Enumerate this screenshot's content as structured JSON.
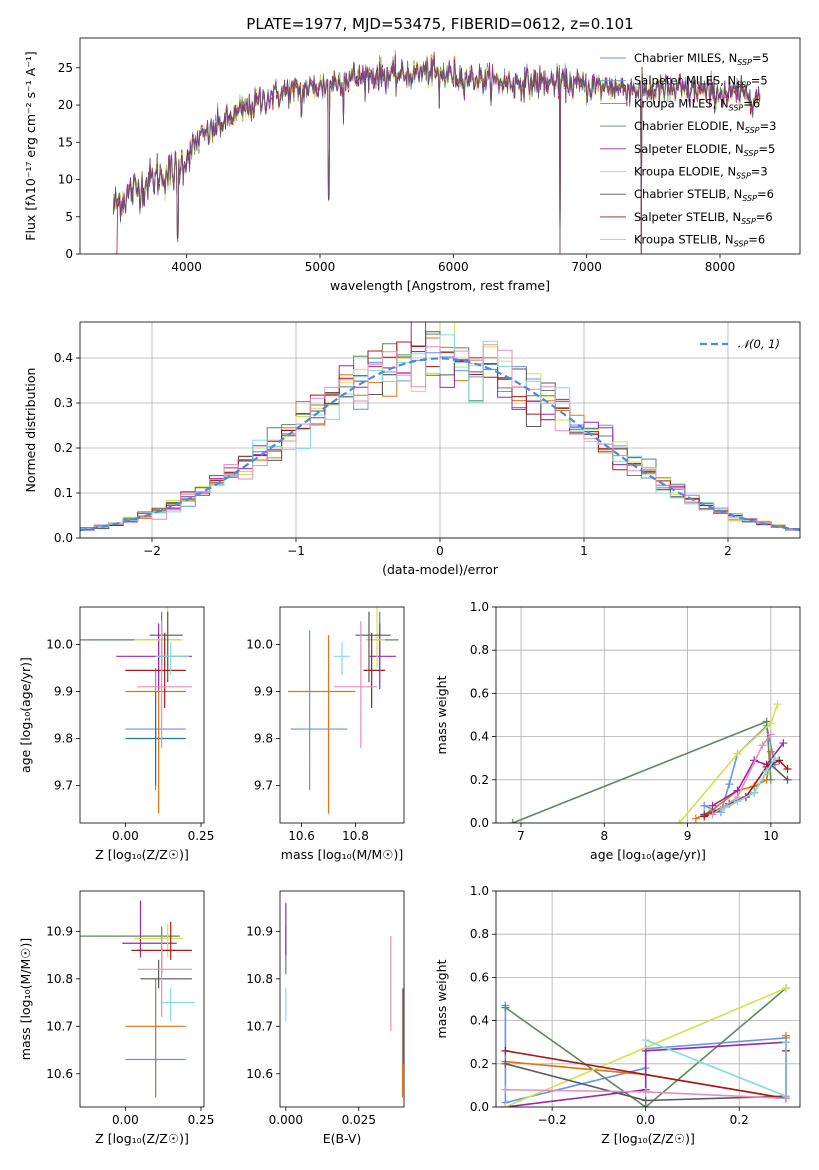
{
  "title": "PLATE=1977, MJD=53475, FIBERID=0612, z=0.101",
  "colors": {
    "Chabrier MILES": "#6495ed",
    "Salpeter MILES": "#1f77b4",
    "Kroupa MILES": "#e5730e",
    "Chabrier ELODIE": "#5e8a5e",
    "Salpeter ELODIE": "#9c27b0",
    "Kroupa ELODIE": "#d2e24e",
    "Chabrier STELIB": "#595959",
    "Salpeter STELIB": "#a8181c",
    "Kroupa STELIB": "#80dede",
    "extra_pink": "#e58fbc",
    "normal_curve": "#4a8be0"
  },
  "chart_data": [
    {
      "id": "spectrum",
      "type": "line",
      "title": "PLATE=1977, MJD=53475, FIBERID=0612, z=0.101",
      "xlabel": "wavelength [Angstrom, rest frame]",
      "ylabel": "Flux [fλ10⁻¹⁷ erg cm⁻² s⁻¹ A⁻¹]",
      "xlim": [
        3200,
        8600
      ],
      "ylim": [
        0,
        29
      ],
      "xticks": [
        "4000",
        "5000",
        "6000",
        "7000",
        "8000"
      ],
      "yticks": [
        "0",
        "5",
        "10",
        "15",
        "20",
        "25"
      ],
      "legend_position": "upper-right",
      "legend": [
        {
          "label": "Chabrier MILES, N",
          "sub": "SSP",
          "suffix": "=5",
          "color_key": "Chabrier MILES"
        },
        {
          "label": "Salpeter MILES, N",
          "sub": "SSP",
          "suffix": "=5",
          "color_key": "Chabrier MILES"
        },
        {
          "label": "Kroupa MILES, N",
          "sub": "SSP",
          "suffix": "=6",
          "color_key": "Kroupa MILES"
        },
        {
          "label": "Chabrier ELODIE, N",
          "sub": "SSP",
          "suffix": "=3",
          "color_key": "Chabrier ELODIE"
        },
        {
          "label": "Salpeter ELODIE, N",
          "sub": "SSP",
          "suffix": "=5",
          "color_key": "Salpeter ELODIE"
        },
        {
          "label": "Kroupa ELODIE, N",
          "sub": "SSP",
          "suffix": "=3",
          "color_key": "Kroupa ELODIE"
        },
        {
          "label": "Chabrier STELIB, N",
          "sub": "SSP",
          "suffix": "=6",
          "color_key": "Chabrier STELIB"
        },
        {
          "label": "Salpeter STELIB, N",
          "sub": "SSP",
          "suffix": "=6",
          "color_key": "Salpeter STELIB"
        },
        {
          "label": "Kroupa STELIB, N",
          "sub": "SSP",
          "suffix": "=6",
          "color_key": "Kroupa STELIB"
        }
      ],
      "continuum_nodes": {
        "x": [
          3450,
          3600,
          3700,
          3800,
          3900,
          4000,
          4100,
          4300,
          4400,
          4600,
          4800,
          5000,
          5200,
          5400,
          5600,
          5800,
          6000,
          6200,
          6400,
          6600,
          6800,
          7000,
          7200,
          7400,
          7600,
          7800,
          8000,
          8200,
          8300
        ],
        "y": [
          6.5,
          8.5,
          9.5,
          10.5,
          11,
          13,
          15.5,
          18,
          19,
          21,
          22,
          22.5,
          23.5,
          24,
          24,
          24.5,
          24,
          23.5,
          23,
          23,
          23,
          22.5,
          22.5,
          22,
          22,
          22,
          21.5,
          21.5,
          21
        ]
      },
      "features": [
        {
          "x": 3934,
          "y": 2
        },
        {
          "x": 4861,
          "y": 19
        },
        {
          "x": 5065,
          "y": 7.5
        },
        {
          "x": 5176,
          "y": 18
        },
        {
          "x": 5893,
          "y": 20
        },
        {
          "x": 6800,
          "y": 0
        },
        {
          "x": 7410,
          "y": 0
        }
      ]
    },
    {
      "id": "residuals",
      "type": "step-histogram",
      "xlabel": "(data-model)/error",
      "ylabel": "Normed distribution",
      "xlim": [
        -2.5,
        2.5
      ],
      "ylim": [
        0,
        0.48
      ],
      "xticks": [
        "−2",
        "−1",
        "0",
        "1",
        "2"
      ],
      "yticks": [
        "0.0",
        "0.1",
        "0.2",
        "0.3",
        "0.4"
      ],
      "legend": "𝒩(0, 1)",
      "legend_position": "upper-right",
      "bin_width": 0.1,
      "bin_start": -2.5,
      "reference": {
        "name": "𝒩(0, 1)",
        "mean": 0,
        "sigma": 1
      }
    },
    {
      "id": "age-vs-Z",
      "type": "errorbar",
      "xlabel": "Z [log₁₀(Z/Z☉)]",
      "ylabel": "age  [log₁₀(age/yr)]",
      "xlim": [
        -0.15,
        0.26
      ],
      "ylim": [
        9.62,
        10.08
      ],
      "xticks": [
        "0.00",
        "0.25"
      ],
      "yticks": [
        "9.7",
        "9.8",
        "9.9",
        "10.0"
      ],
      "points": [
        {
          "key": "Chabrier MILES",
          "x": 0.1,
          "xerr": [
            0.1,
            0.1
          ],
          "y": 9.82,
          "yerr": [
            0.13,
            0.13
          ]
        },
        {
          "key": "Salpeter MILES",
          "x": 0.1,
          "xerr": [
            0.1,
            0.1
          ],
          "y": 9.8,
          "yerr": [
            0.1,
            0.1
          ]
        },
        {
          "key": "Kroupa MILES",
          "x": 0.11,
          "xerr": [
            0.11,
            0.09
          ],
          "y": 9.9,
          "yerr": [
            0.26,
            0.12
          ]
        },
        {
          "key": "Chabrier ELODIE",
          "x": 0.12,
          "xerr": [
            0.27,
            0.06
          ],
          "y": 10.01,
          "yerr": [
            0.06,
            0.06
          ]
        },
        {
          "key": "Salpeter ELODIE",
          "x": 0.11,
          "xerr": [
            0.14,
            0.11
          ],
          "y": 9.975,
          "yerr": [
            0.07,
            0.07
          ]
        },
        {
          "key": "Kroupa ELODIE",
          "x": 0.14,
          "xerr": [
            0.11,
            0.05
          ],
          "y": 10.01,
          "yerr": [
            0.06,
            0.07
          ]
        },
        {
          "key": "Chabrier STELIB",
          "x": 0.14,
          "xerr": [
            0.06,
            0.05
          ],
          "y": 10.02,
          "yerr": [
            0.1,
            0.05
          ]
        },
        {
          "key": "Salpeter STELIB",
          "x": 0.13,
          "xerr": [
            0.13,
            0.07
          ],
          "y": 9.945,
          "yerr": [
            0.08,
            0.08
          ]
        },
        {
          "key": "Kroupa STELIB",
          "x": 0.15,
          "xerr": [
            0.05,
            0.06
          ],
          "y": 9.975,
          "yerr": [
            0.04,
            0.03
          ]
        },
        {
          "key": "extra_pink",
          "x": 0.12,
          "xerr": [
            0.08,
            0.1
          ],
          "y": 9.91,
          "yerr": [
            0.13,
            0.14
          ]
        }
      ]
    },
    {
      "id": "age-vs-mass",
      "type": "errorbar",
      "xlabel": "mass [log₁₀(M/M☉)]",
      "ylabel": "",
      "xlim": [
        10.52,
        10.98
      ],
      "ylim": [
        9.62,
        10.08
      ],
      "xticks": [
        "10.6",
        "10.8"
      ],
      "yticks": [
        "9.7",
        "9.8",
        "9.9",
        "10.0"
      ],
      "points": [
        {
          "key": "Chabrier MILES",
          "x": 10.63,
          "xerr": [
            0.07,
            0.14
          ],
          "y": 9.82,
          "yerr": [
            0.13,
            0.21
          ]
        },
        {
          "key": "Kroupa MILES",
          "x": 10.7,
          "xerr": [
            0.15,
            0.1
          ],
          "y": 9.9,
          "yerr": [
            0.26,
            0.12
          ]
        },
        {
          "key": "Chabrier ELODIE",
          "x": 10.89,
          "xerr": [
            0.05,
            0.07
          ],
          "y": 10.01,
          "yerr": [
            0.06,
            0.06
          ]
        },
        {
          "key": "Salpeter ELODIE",
          "x": 10.89,
          "xerr": [
            0.04,
            0.06
          ],
          "y": 9.975,
          "yerr": [
            0.07,
            0.07
          ]
        },
        {
          "key": "Kroupa ELODIE",
          "x": 10.88,
          "xerr": [
            0.04,
            0.03
          ],
          "y": 10.01,
          "yerr": [
            0.06,
            0.07
          ]
        },
        {
          "key": "Chabrier STELIB",
          "x": 10.85,
          "xerr": [
            0.05,
            0.08
          ],
          "y": 10.02,
          "yerr": [
            0.1,
            0.05
          ]
        },
        {
          "key": "Salpeter STELIB",
          "x": 10.86,
          "xerr": [
            0.03,
            0.05
          ],
          "y": 9.945,
          "yerr": [
            0.08,
            0.08
          ]
        },
        {
          "key": "Kroupa STELIB",
          "x": 10.75,
          "xerr": [
            0.03,
            0.03
          ],
          "y": 9.975,
          "yerr": [
            0.04,
            0.03
          ]
        },
        {
          "key": "extra_pink",
          "x": 10.82,
          "xerr": [
            0.1,
            0.06
          ],
          "y": 9.91,
          "yerr": [
            0.13,
            0.14
          ]
        }
      ]
    },
    {
      "id": "weight-vs-age",
      "type": "line",
      "xlabel": "age  [log₁₀(age/yr)]",
      "ylabel": "mass weight",
      "xlim": [
        6.7,
        10.35
      ],
      "ylim": [
        0,
        1
      ],
      "xticks": [
        "7",
        "8",
        "9",
        "10"
      ],
      "yticks": [
        "0.0",
        "0.2",
        "0.4",
        "0.6",
        "0.8",
        "1.0"
      ],
      "series": [
        {
          "key": "Chabrier MILES",
          "x": [
            9.2,
            9.4,
            9.5,
            9.6,
            9.95,
            10.05
          ],
          "y": [
            0.08,
            0.05,
            0.18,
            0.32,
            0.45,
            0.27
          ]
        },
        {
          "key": "Kroupa MILES",
          "x": [
            9.1,
            9.3,
            9.6,
            9.8,
            9.95,
            10.0
          ],
          "y": [
            0.02,
            0.06,
            0.15,
            0.17,
            0.2,
            0.33
          ]
        },
        {
          "key": "Chabrier ELODIE",
          "x": [
            6.9,
            9.95,
            10.0
          ],
          "y": [
            0.0,
            0.47,
            0.2
          ]
        },
        {
          "key": "Salpeter ELODIE",
          "x": [
            9.3,
            9.6,
            9.8,
            9.95,
            10.15
          ],
          "y": [
            0.08,
            0.15,
            0.29,
            0.27,
            0.37
          ]
        },
        {
          "key": "Kroupa ELODIE",
          "x": [
            8.9,
            9.6,
            10.0,
            10.08
          ],
          "y": [
            0.0,
            0.32,
            0.46,
            0.55
          ]
        },
        {
          "key": "Chabrier STELIB",
          "x": [
            9.2,
            9.3,
            9.5,
            9.8,
            10.0,
            10.2
          ],
          "y": [
            0.04,
            0.05,
            0.09,
            0.14,
            0.27,
            0.2
          ]
        },
        {
          "key": "Salpeter STELIB",
          "x": [
            9.2,
            9.4,
            9.7,
            9.95,
            10.1,
            10.2
          ],
          "y": [
            0.03,
            0.06,
            0.12,
            0.26,
            0.29,
            0.25
          ]
        },
        {
          "key": "Kroupa STELIB",
          "x": [
            9.4,
            9.6,
            9.8,
            9.95,
            10.05
          ],
          "y": [
            0.06,
            0.1,
            0.14,
            0.24,
            0.3
          ]
        },
        {
          "key": "extra_pink",
          "x": [
            9.3,
            9.6,
            9.9,
            10.0
          ],
          "y": [
            0.04,
            0.12,
            0.36,
            0.41
          ]
        }
      ]
    },
    {
      "id": "mass-vs-Z",
      "type": "errorbar",
      "xlabel": "Z [log₁₀(Z/Z☉)]",
      "ylabel": "mass [log₁₀(M/M☉)]",
      "xlim": [
        -0.15,
        0.26
      ],
      "ylim": [
        10.53,
        10.985
      ],
      "xticks": [
        "0.00",
        "0.25"
      ],
      "yticks": [
        "10.6",
        "10.7",
        "10.8",
        "10.9"
      ],
      "points": [
        {
          "key": "Chabrier MILES",
          "x": 0.1,
          "xerr": [
            0.1,
            0.1
          ],
          "y": 10.63,
          "yerr": [
            0.08,
            0.15
          ]
        },
        {
          "key": "Kroupa MILES",
          "x": 0.1,
          "xerr": [
            0.1,
            0.1
          ],
          "y": 10.7,
          "yerr": [
            0.15,
            0.1
          ]
        },
        {
          "key": "Chabrier ELODIE",
          "x": 0.12,
          "xerr": [
            0.27,
            0.06
          ],
          "y": 10.89,
          "yerr": [
            0.08,
            0.02
          ]
        },
        {
          "key": "Salpeter ELODIE",
          "x": 0.05,
          "xerr": [
            0.06,
            0.12
          ],
          "y": 10.875,
          "yerr": [
            0.03,
            0.09
          ]
        },
        {
          "key": "Kroupa ELODIE",
          "x": 0.14,
          "xerr": [
            0.11,
            0.05
          ],
          "y": 10.885,
          "yerr": [
            0.04,
            0.03
          ]
        },
        {
          "key": "Chabrier STELIB",
          "x": 0.11,
          "xerr": [
            0.06,
            0.11
          ],
          "y": 10.8,
          "yerr": [
            0.02,
            0.04
          ]
        },
        {
          "key": "Salpeter STELIB",
          "x": 0.15,
          "xerr": [
            0.13,
            0.07
          ],
          "y": 10.86,
          "yerr": [
            0.02,
            0.06
          ]
        },
        {
          "key": "Kroupa STELIB",
          "x": 0.15,
          "xerr": [
            0.03,
            0.08
          ],
          "y": 10.75,
          "yerr": [
            0.04,
            0.03
          ]
        },
        {
          "key": "extra_pink",
          "x": 0.12,
          "xerr": [
            0.08,
            0.1
          ],
          "y": 10.82,
          "yerr": [
            0.1,
            0.07
          ]
        }
      ]
    },
    {
      "id": "mass-vs-EBV",
      "type": "errorbar",
      "xlabel": "E(B-V)",
      "ylabel": "",
      "xlim": [
        -0.002,
        0.0405
      ],
      "ylim": [
        10.53,
        10.985
      ],
      "xticks": [
        "0.000",
        "0.025"
      ],
      "yticks": [
        "10.6",
        "10.7",
        "10.8",
        "10.9"
      ],
      "points": [
        {
          "key": "Kroupa MILES",
          "x": 0.04,
          "y": 10.7,
          "yerr": [
            0.15,
            0.08
          ]
        },
        {
          "key": "Chabrier MILES",
          "x": 0.0402,
          "y": 10.7,
          "yerr": [
            0.08,
            0.08
          ]
        },
        {
          "key": "Chabrier ELODIE",
          "x": 0.0,
          "y": 10.89,
          "yerr": [
            0.08,
            0.02
          ]
        },
        {
          "key": "Salpeter ELODIE",
          "x": 0.0,
          "y": 10.9,
          "yerr": [
            0.05,
            0.06
          ]
        },
        {
          "key": "Kroupa STELIB",
          "x": 0.0,
          "y": 10.75,
          "yerr": [
            0.04,
            0.03
          ]
        },
        {
          "key": "extra_pink",
          "x": 0.036,
          "y": 10.79,
          "yerr": [
            0.1,
            0.1
          ]
        }
      ]
    },
    {
      "id": "weight-vs-Z",
      "type": "line",
      "xlabel": "Z [log₁₀(Z/Z☉)]",
      "ylabel": "mass weight",
      "xlim": [
        -0.32,
        0.33
      ],
      "ylim": [
        0,
        1
      ],
      "xticks": [
        "−0.2",
        "0.0",
        "0.2"
      ],
      "yticks": [
        "0.0",
        "0.2",
        "0.4",
        "0.6",
        "0.8",
        "1.0"
      ],
      "series": [
        {
          "key": "Chabrier MILES",
          "x": [
            -0.3,
            -0.3,
            0.0,
            0.0,
            0.3,
            0.3
          ],
          "y": [
            0.47,
            0.02,
            0.18,
            0.27,
            0.32,
            0.05
          ]
        },
        {
          "key": "Kroupa MILES",
          "x": [
            -0.3,
            0.0,
            0.3,
            0.3
          ],
          "y": [
            0.21,
            0.15,
            0.04,
            0.33
          ]
        },
        {
          "key": "Chabrier ELODIE",
          "x": [
            -0.3,
            0.0,
            0.3
          ],
          "y": [
            0.46,
            0.0,
            0.55
          ]
        },
        {
          "key": "Salpeter ELODIE",
          "x": [
            -0.3,
            0.0,
            0.0,
            0.3
          ],
          "y": [
            0.0,
            0.08,
            0.26,
            0.3
          ]
        },
        {
          "key": "Kroupa ELODIE",
          "x": [
            -0.3,
            0.3
          ],
          "y": [
            0.0,
            0.55
          ]
        },
        {
          "key": "Chabrier STELIB",
          "x": [
            -0.3,
            0.0,
            0.3,
            0.3
          ],
          "y": [
            0.2,
            0.03,
            0.05,
            0.3
          ]
        },
        {
          "key": "Salpeter STELIB",
          "x": [
            -0.3,
            0.3,
            0.3
          ],
          "y": [
            0.26,
            0.04,
            0.26
          ]
        },
        {
          "key": "Kroupa STELIB",
          "x": [
            0.0,
            0.3,
            0.3
          ],
          "y": [
            0.31,
            0.05,
            0.3
          ]
        },
        {
          "key": "extra_pink",
          "x": [
            -0.3,
            0.0,
            0.3
          ],
          "y": [
            0.08,
            0.07,
            0.04
          ]
        }
      ]
    }
  ]
}
